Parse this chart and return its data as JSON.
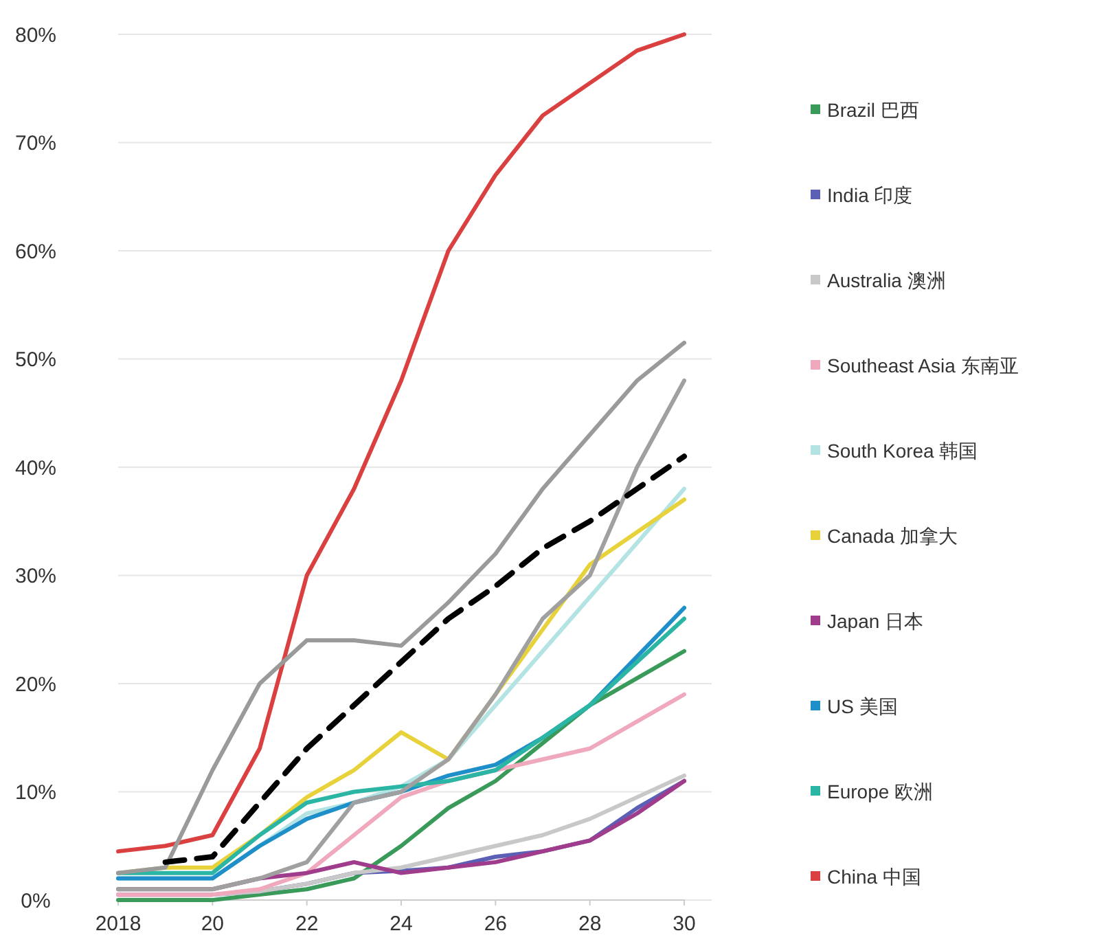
{
  "chart_data": {
    "type": "line",
    "x": [
      2018,
      2019,
      2020,
      2021,
      2022,
      2023,
      2024,
      2025,
      2026,
      2027,
      2028,
      2029,
      2030
    ],
    "xlim": [
      2018,
      2030
    ],
    "xticks": [
      2018,
      {
        "value": 2020,
        "label": "20"
      },
      {
        "value": 2022,
        "label": "22"
      },
      {
        "value": 2024,
        "label": "24"
      },
      {
        "value": 2026,
        "label": "26"
      },
      {
        "value": 2028,
        "label": "28"
      },
      {
        "value": 2030,
        "label": "30"
      }
    ],
    "ylim": [
      0,
      80
    ],
    "yticks": [
      {
        "value": 0,
        "label": "0%"
      },
      {
        "value": 10,
        "label": "10%"
      },
      {
        "value": 20,
        "label": "20%"
      },
      {
        "value": 30,
        "label": "30%"
      },
      {
        "value": 40,
        "label": "40%"
      },
      {
        "value": 50,
        "label": "50%"
      },
      {
        "value": 60,
        "label": "60%"
      },
      {
        "value": 70,
        "label": "70%"
      },
      {
        "value": 80,
        "label": "80%"
      }
    ],
    "grid": "y",
    "legend": "right",
    "marker": "none",
    "series": [
      {
        "name": "Brazil 巴西",
        "color": "#3a9a5a",
        "values": [
          0,
          0,
          0,
          0.5,
          1,
          2,
          5,
          8.5,
          11,
          14.5,
          18,
          20.5,
          23
        ]
      },
      {
        "name": "India 印度",
        "color": "#5b5fb5",
        "values": [
          0.5,
          0.5,
          0.5,
          0.8,
          1.5,
          2.5,
          2.7,
          3,
          4,
          4.5,
          5.5,
          8.5,
          11
        ]
      },
      {
        "name": "Australia 澳洲",
        "color": "#c8c8c8",
        "values": [
          0.5,
          0.5,
          0.5,
          0.8,
          1.5,
          2.5,
          3,
          4,
          5,
          6,
          7.5,
          9.5,
          11.5
        ]
      },
      {
        "name": "Southeast Asia 东南亚",
        "color": "#f0a8bd",
        "values": [
          0.5,
          0.5,
          0.5,
          1,
          2.5,
          6,
          9.5,
          11,
          12,
          13,
          14,
          16.5,
          19
        ]
      },
      {
        "name": "South Korea 韩国",
        "color": "#b3e3e3",
        "values": [
          2,
          2,
          2,
          5,
          8,
          9,
          10.5,
          13,
          18,
          23,
          28,
          33,
          38
        ]
      },
      {
        "name": "Canada 加拿大",
        "color": "#e8d23c",
        "values": [
          2.5,
          3,
          3,
          6,
          9.5,
          12,
          15.5,
          13,
          19,
          25,
          31,
          34,
          37
        ]
      },
      {
        "name": "Japan 日本",
        "color": "#a03c8c",
        "values": [
          1,
          1,
          1,
          2,
          2.5,
          3.5,
          2.5,
          3,
          3.5,
          4.5,
          5.5,
          8,
          11
        ]
      },
      {
        "name": "US 美国",
        "color": "#1f8fc9",
        "values": [
          2,
          2,
          2,
          5,
          7.5,
          9,
          10,
          11.5,
          12.5,
          15,
          18,
          22.5,
          27
        ]
      },
      {
        "name": "Europe 欧洲",
        "color": "#2ab5a5",
        "values": [
          2.5,
          2.5,
          2.5,
          6,
          9,
          10,
          10.5,
          11,
          12,
          15,
          18,
          22,
          26
        ]
      },
      {
        "name": "China 中国",
        "color": "#d9403f",
        "values": [
          4.5,
          5,
          6,
          14,
          30,
          38,
          48,
          60,
          67,
          72.5,
          75.5,
          78.5,
          80
        ]
      },
      {
        "color": "#9a9a9a",
        "values": [
          2.5,
          3,
          12,
          20,
          24,
          24,
          23.5,
          27.5,
          32,
          38,
          43,
          48,
          51.5
        ]
      },
      {
        "color": "#a0a0a0",
        "values": [
          1,
          1,
          1,
          2,
          3.5,
          9,
          10,
          13,
          19,
          26,
          30,
          40,
          48
        ]
      },
      {
        "color": "#000000",
        "line_style": "dashed",
        "values": [
          null,
          3.5,
          4,
          9,
          14,
          18,
          22,
          26,
          29,
          32.5,
          35,
          38,
          41
        ]
      }
    ]
  }
}
